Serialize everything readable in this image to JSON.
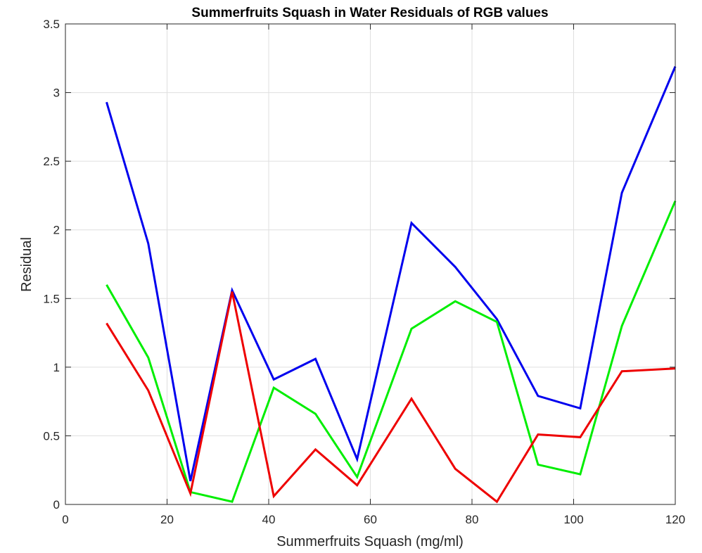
{
  "chart_data": {
    "type": "line",
    "title": "Summerfruits Squash in Water Residuals of RGB values",
    "xlabel": "Summerfruits Squash (mg/ml)",
    "ylabel": "Residual",
    "xlim": [
      0,
      120
    ],
    "ylim": [
      0,
      3.5
    ],
    "xticks": [
      0,
      20,
      40,
      60,
      80,
      100,
      120
    ],
    "yticks": [
      0,
      0.5,
      1,
      1.5,
      2,
      2.5,
      3,
      3.5
    ],
    "xtick_labels": [
      "0",
      "20",
      "40",
      "60",
      "80",
      "100",
      "120"
    ],
    "ytick_labels": [
      "0",
      "0.5",
      "1",
      "1.5",
      "2",
      "2.5",
      "3",
      "3.5"
    ],
    "grid": true,
    "x": [
      8.1,
      16.3,
      24.6,
      32.8,
      41.0,
      49.2,
      57.4,
      68.1,
      76.7,
      84.9,
      93.0,
      101.3,
      109.5,
      120.0
    ],
    "series": [
      {
        "color": "#0000ee",
        "values": [
          2.93,
          1.9,
          0.17,
          1.56,
          0.91,
          1.06,
          0.33,
          2.05,
          1.73,
          1.35,
          0.79,
          0.7,
          2.27,
          3.19
        ]
      },
      {
        "color": "#00ee00",
        "values": [
          1.6,
          1.07,
          0.09,
          0.02,
          0.85,
          0.66,
          0.2,
          1.28,
          1.48,
          1.33,
          0.29,
          0.22,
          1.3,
          2.21
        ]
      },
      {
        "color": "#ee0000",
        "values": [
          1.32,
          0.83,
          0.08,
          1.55,
          0.06,
          0.4,
          0.14,
          0.77,
          0.26,
          0.02,
          0.51,
          0.49,
          0.97,
          0.99
        ]
      }
    ]
  }
}
